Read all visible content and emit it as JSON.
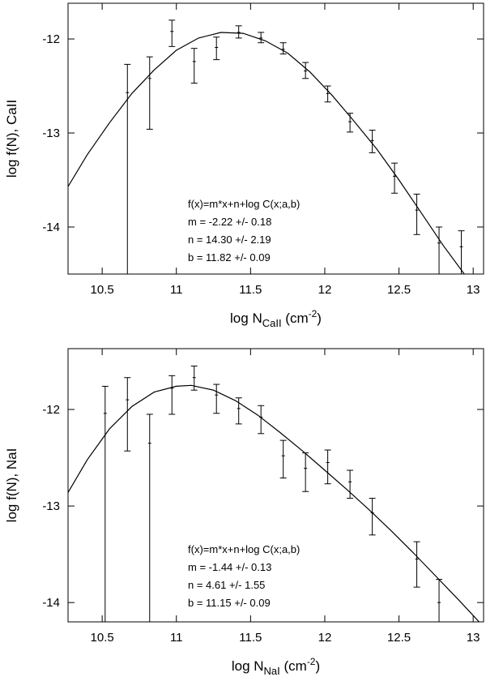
{
  "chart_data": [
    {
      "type": "scatter",
      "xlim": [
        10.27,
        13.07
      ],
      "ylim": [
        -14.5,
        -11.62
      ],
      "xticks": [
        10.5,
        11,
        11.5,
        12,
        12.5,
        13
      ],
      "xtick_labels": [
        "10.5",
        "11",
        "11.5",
        "12",
        "12.5",
        "13"
      ],
      "yticks": [
        -12,
        -13,
        -14
      ],
      "ytick_labels": [
        "-12",
        "-13",
        "-14"
      ],
      "xlabel": {
        "main": "log N",
        "sub": "CaII",
        "mid": " (cm",
        "sup": "-2",
        "end": ")"
      },
      "ylabel": "log f(N), CaII",
      "points": [
        {
          "x": 10.67,
          "y": -12.57,
          "ylo": -14.5,
          "yhi": -12.27
        },
        {
          "x": 10.82,
          "y": -12.42,
          "ylo": -12.96,
          "yhi": -12.19
        },
        {
          "x": 10.97,
          "y": -11.92,
          "ylo": -12.08,
          "yhi": -11.8
        },
        {
          "x": 11.12,
          "y": -12.24,
          "ylo": -12.47,
          "yhi": -12.1
        },
        {
          "x": 11.27,
          "y": -12.09,
          "ylo": -12.22,
          "yhi": -11.98
        },
        {
          "x": 11.42,
          "y": -11.93,
          "ylo": -11.99,
          "yhi": -11.86
        },
        {
          "x": 11.57,
          "y": -11.99,
          "ylo": -12.04,
          "yhi": -11.93
        },
        {
          "x": 11.72,
          "y": -12.11,
          "ylo": -12.16,
          "yhi": -12.04
        },
        {
          "x": 11.87,
          "y": -12.34,
          "ylo": -12.42,
          "yhi": -12.25
        },
        {
          "x": 12.02,
          "y": -12.58,
          "ylo": -12.67,
          "yhi": -12.5
        },
        {
          "x": 12.17,
          "y": -12.88,
          "ylo": -12.99,
          "yhi": -12.79
        },
        {
          "x": 12.32,
          "y": -13.08,
          "ylo": -13.21,
          "yhi": -12.97
        },
        {
          "x": 12.47,
          "y": -13.46,
          "ylo": -13.64,
          "yhi": -13.32
        },
        {
          "x": 12.62,
          "y": -13.82,
          "ylo": -14.08,
          "yhi": -13.65
        },
        {
          "x": 12.77,
          "y": -14.17,
          "ylo": -14.5,
          "yhi": -14.0
        },
        {
          "x": 12.92,
          "y": -14.21,
          "ylo": -14.5,
          "yhi": -14.04
        }
      ],
      "fit_curve": [
        {
          "x": 10.27,
          "y": -13.57
        },
        {
          "x": 10.4,
          "y": -13.23
        },
        {
          "x": 10.55,
          "y": -12.89
        },
        {
          "x": 10.7,
          "y": -12.58
        },
        {
          "x": 10.85,
          "y": -12.33
        },
        {
          "x": 11.0,
          "y": -12.12
        },
        {
          "x": 11.15,
          "y": -11.99
        },
        {
          "x": 11.3,
          "y": -11.93
        },
        {
          "x": 11.45,
          "y": -11.94
        },
        {
          "x": 11.6,
          "y": -12.02
        },
        {
          "x": 11.75,
          "y": -12.15
        },
        {
          "x": 11.9,
          "y": -12.35
        },
        {
          "x": 12.05,
          "y": -12.6
        },
        {
          "x": 12.2,
          "y": -12.88
        },
        {
          "x": 12.35,
          "y": -13.17
        },
        {
          "x": 12.5,
          "y": -13.5
        },
        {
          "x": 12.65,
          "y": -13.85
        },
        {
          "x": 12.8,
          "y": -14.2
        },
        {
          "x": 12.94,
          "y": -14.5
        }
      ],
      "annotation": [
        "f(x)=m*x+n+log C(x;a,b)",
        "m = -2.22 +/- 0.18",
        "n = 14.30 +/- 2.19",
        "b = 11.82 +/- 0.09"
      ]
    },
    {
      "type": "scatter",
      "xlim": [
        10.27,
        13.07
      ],
      "ylim": [
        -14.2,
        -11.37
      ],
      "xticks": [
        10.5,
        11,
        11.5,
        12,
        12.5,
        13
      ],
      "xtick_labels": [
        "10.5",
        "11",
        "11.5",
        "12",
        "12.5",
        "13"
      ],
      "yticks": [
        -12,
        -13,
        -14
      ],
      "ytick_labels": [
        "-12",
        "-13",
        "-14"
      ],
      "xlabel": {
        "main": "log N",
        "sub": "NaI",
        "mid": " (cm",
        "sup": "-2",
        "end": ")"
      },
      "ylabel": "log f(N), NaI",
      "points": [
        {
          "x": 10.52,
          "y": -12.04,
          "ylo": -14.2,
          "yhi": -11.76
        },
        {
          "x": 10.67,
          "y": -11.9,
          "ylo": -12.43,
          "yhi": -11.67
        },
        {
          "x": 10.82,
          "y": -12.35,
          "ylo": -14.2,
          "yhi": -12.05
        },
        {
          "x": 10.97,
          "y": -11.78,
          "ylo": -12.05,
          "yhi": -11.65
        },
        {
          "x": 11.12,
          "y": -11.67,
          "ylo": -11.8,
          "yhi": -11.55
        },
        {
          "x": 11.27,
          "y": -11.85,
          "ylo": -12.04,
          "yhi": -11.74
        },
        {
          "x": 11.42,
          "y": -11.99,
          "ylo": -12.15,
          "yhi": -11.88
        },
        {
          "x": 11.57,
          "y": -12.08,
          "ylo": -12.25,
          "yhi": -11.96
        },
        {
          "x": 11.72,
          "y": -12.48,
          "ylo": -12.71,
          "yhi": -12.32
        },
        {
          "x": 11.87,
          "y": -12.61,
          "ylo": -12.85,
          "yhi": -12.45
        },
        {
          "x": 12.02,
          "y": -12.55,
          "ylo": -12.77,
          "yhi": -12.42
        },
        {
          "x": 12.17,
          "y": -12.75,
          "ylo": -12.92,
          "yhi": -12.63
        },
        {
          "x": 12.32,
          "y": -13.07,
          "ylo": -13.3,
          "yhi": -12.92
        },
        {
          "x": 12.62,
          "y": -13.55,
          "ylo": -13.84,
          "yhi": -13.37
        },
        {
          "x": 12.77,
          "y": -14.0,
          "ylo": -14.2,
          "yhi": -13.76
        }
      ],
      "fit_curve": [
        {
          "x": 10.27,
          "y": -12.86
        },
        {
          "x": 10.4,
          "y": -12.52
        },
        {
          "x": 10.55,
          "y": -12.2
        },
        {
          "x": 10.7,
          "y": -11.97
        },
        {
          "x": 10.85,
          "y": -11.82
        },
        {
          "x": 11.0,
          "y": -11.76
        },
        {
          "x": 11.1,
          "y": -11.75
        },
        {
          "x": 11.25,
          "y": -11.8
        },
        {
          "x": 11.4,
          "y": -11.91
        },
        {
          "x": 11.55,
          "y": -12.06
        },
        {
          "x": 11.7,
          "y": -12.24
        },
        {
          "x": 11.85,
          "y": -12.43
        },
        {
          "x": 12.0,
          "y": -12.63
        },
        {
          "x": 12.15,
          "y": -12.83
        },
        {
          "x": 12.3,
          "y": -13.04
        },
        {
          "x": 12.45,
          "y": -13.26
        },
        {
          "x": 12.6,
          "y": -13.49
        },
        {
          "x": 12.75,
          "y": -13.73
        },
        {
          "x": 12.9,
          "y": -13.97
        },
        {
          "x": 13.04,
          "y": -14.2
        }
      ],
      "annotation": [
        "f(x)=m*x+n+log C(x;a,b)",
        "m = -1.44 +/- 0.13",
        "n = 4.61 +/- 1.55",
        "b = 11.15 +/- 0.09"
      ]
    }
  ]
}
